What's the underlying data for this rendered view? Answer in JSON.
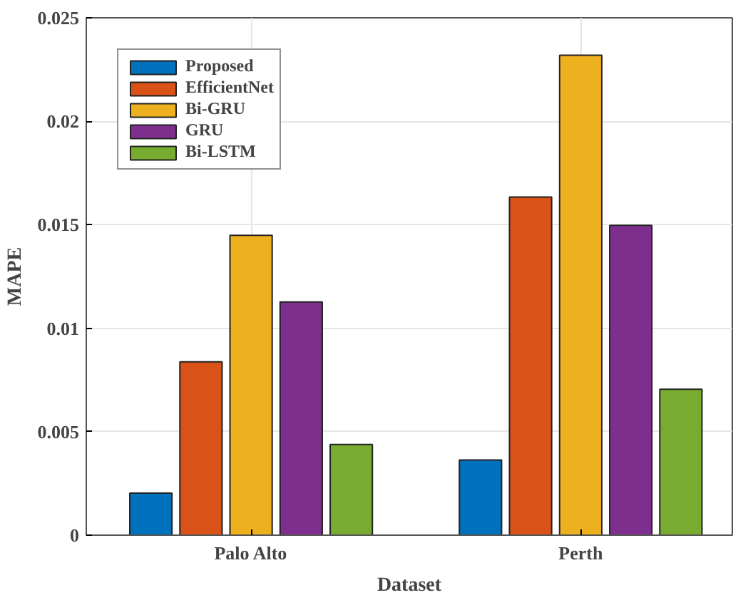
{
  "chart_data": {
    "type": "bar",
    "xlabel": "Dataset",
    "ylabel": "MAPE",
    "categories": [
      "Palo Alto",
      "Perth"
    ],
    "series": [
      {
        "name": "Proposed",
        "color": "#0072bd",
        "values": [
          0.00203,
          0.00363
        ]
      },
      {
        "name": "EfficientNet",
        "color": "#d95319",
        "values": [
          0.00838,
          0.01634
        ]
      },
      {
        "name": "Bi-GRU",
        "color": "#edb120",
        "values": [
          0.01449,
          0.02319
        ]
      },
      {
        "name": "GRU",
        "color": "#7e2f8e",
        "values": [
          0.01127,
          0.01497
        ]
      },
      {
        "name": "Bi-LSTM",
        "color": "#77ac30",
        "values": [
          0.00438,
          0.00705
        ]
      }
    ],
    "ylim": [
      0,
      0.025
    ],
    "yticks": [
      0,
      0.005,
      0.01,
      0.015,
      0.02,
      0.025
    ],
    "grid": true,
    "legend": "top left"
  }
}
